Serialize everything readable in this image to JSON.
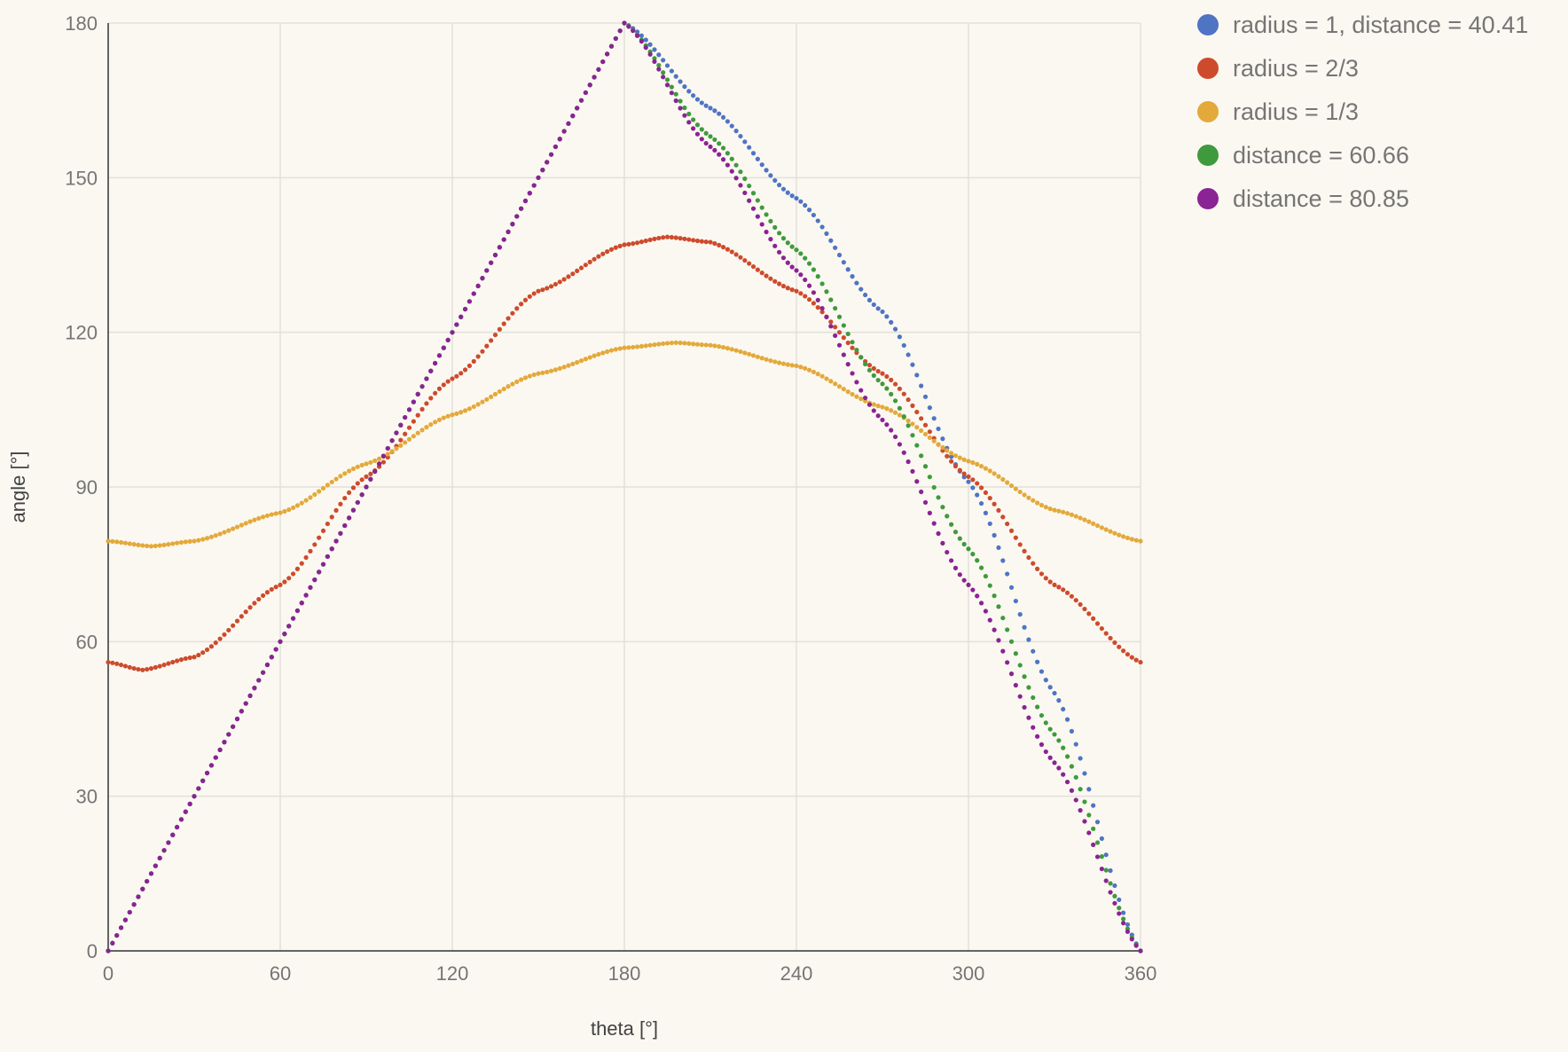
{
  "chart_data": {
    "type": "scatter",
    "xlabel": "theta [°]",
    "ylabel": "angle [°]",
    "xlim": [
      0,
      360
    ],
    "ylim": [
      0,
      180
    ],
    "x_ticks": [
      "0",
      "60",
      "120",
      "180",
      "240",
      "300",
      "360"
    ],
    "y_ticks": [
      "0",
      "30",
      "60",
      "90",
      "120",
      "150",
      "180"
    ],
    "grid": true,
    "legend": "right",
    "series": [
      {
        "name": "radius = 1, distance = 40.41",
        "color": "#4f74c4",
        "points": [
          [
            0,
            0
          ],
          [
            30,
            30
          ],
          [
            60,
            60
          ],
          [
            90,
            90
          ],
          [
            120,
            120
          ],
          [
            150,
            150
          ],
          [
            180,
            180
          ],
          [
            210,
            163.5
          ],
          [
            240,
            146
          ],
          [
            270,
            124
          ],
          [
            300,
            91
          ],
          [
            330,
            50
          ],
          [
            360,
            0
          ]
        ]
      },
      {
        "name": "radius = 2/3",
        "color": "#cd4b2c",
        "points": [
          [
            0,
            56
          ],
          [
            12,
            54.5
          ],
          [
            30,
            57
          ],
          [
            60,
            71
          ],
          [
            90,
            92
          ],
          [
            120,
            111
          ],
          [
            150,
            128
          ],
          [
            180,
            137
          ],
          [
            195,
            138.5
          ],
          [
            210,
            137.5
          ],
          [
            240,
            128
          ],
          [
            270,
            112
          ],
          [
            300,
            92
          ],
          [
            330,
            71
          ],
          [
            360,
            56
          ]
        ]
      },
      {
        "name": "radius = 1/3",
        "color": "#e3a93b",
        "points": [
          [
            0,
            79.5
          ],
          [
            15,
            78.5
          ],
          [
            30,
            79.5
          ],
          [
            60,
            85
          ],
          [
            90,
            94.5
          ],
          [
            120,
            104
          ],
          [
            150,
            112
          ],
          [
            180,
            117
          ],
          [
            198,
            118
          ],
          [
            210,
            117.5
          ],
          [
            240,
            113.5
          ],
          [
            270,
            105.5
          ],
          [
            300,
            95
          ],
          [
            330,
            85.5
          ],
          [
            360,
            79.5
          ]
        ]
      },
      {
        "name": "distance = 60.66",
        "color": "#3f9a3d",
        "points": [
          [
            0,
            0
          ],
          [
            30,
            30
          ],
          [
            60,
            60
          ],
          [
            90,
            90
          ],
          [
            120,
            120
          ],
          [
            150,
            150
          ],
          [
            180,
            180
          ],
          [
            210,
            158
          ],
          [
            240,
            136
          ],
          [
            270,
            110
          ],
          [
            300,
            78
          ],
          [
            330,
            42
          ],
          [
            360,
            0
          ]
        ]
      },
      {
        "name": "distance = 80.85",
        "color": "#8a2393",
        "points": [
          [
            0,
            0
          ],
          [
            30,
            30
          ],
          [
            60,
            60
          ],
          [
            90,
            90
          ],
          [
            120,
            120
          ],
          [
            150,
            150
          ],
          [
            180,
            180
          ],
          [
            210,
            156
          ],
          [
            240,
            132
          ],
          [
            270,
            103
          ],
          [
            300,
            71
          ],
          [
            330,
            36.5
          ],
          [
            360,
            0
          ]
        ]
      }
    ]
  }
}
